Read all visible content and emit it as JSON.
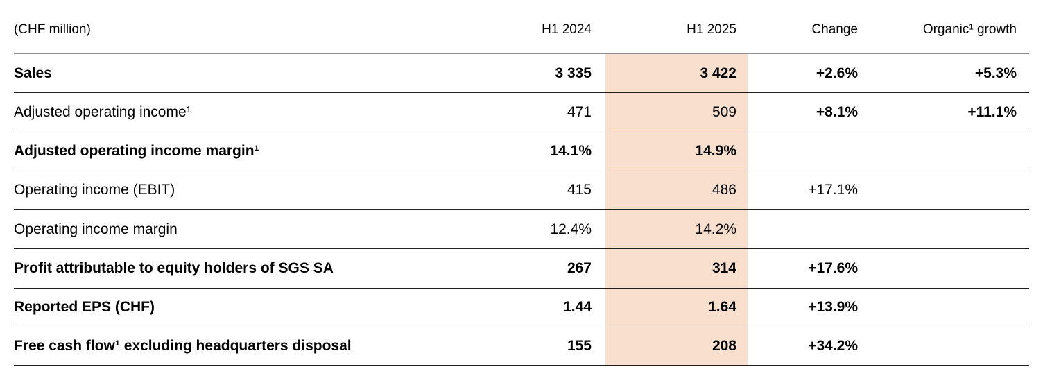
{
  "table": {
    "unit_label": "(CHF million)",
    "columns": {
      "h1_2024": "H1 2024",
      "h1_2025": "H1 2025",
      "change": "Change",
      "organic": "Organic¹ growth"
    },
    "highlight_color": "#f8dfce",
    "rows": [
      {
        "label": "Sales",
        "h1_2024": "3 335",
        "h1_2025": "3 422",
        "change": "+2.6%",
        "organic": "+5.3%"
      },
      {
        "label": "Adjusted operating income¹",
        "h1_2024": "471",
        "h1_2025": "509",
        "change": "+8.1%",
        "organic": "+11.1%"
      },
      {
        "label": "Adjusted operating income margin¹",
        "h1_2024": "14.1%",
        "h1_2025": "14.9%",
        "change": "",
        "organic": ""
      },
      {
        "label": "Operating income (EBIT)",
        "h1_2024": "415",
        "h1_2025": "486",
        "change": "+17.1%",
        "organic": ""
      },
      {
        "label": "Operating income margin",
        "h1_2024": "12.4%",
        "h1_2025": "14.2%",
        "change": "",
        "organic": ""
      },
      {
        "label": "Profit attributable to equity holders of SGS SA",
        "h1_2024": "267",
        "h1_2025": "314",
        "change": "+17.6%",
        "organic": ""
      },
      {
        "label": "Reported EPS (CHF)",
        "h1_2024": "1.44",
        "h1_2025": "1.64",
        "change": "+13.9%",
        "organic": ""
      },
      {
        "label": "Free cash flow¹ excluding headquarters disposal",
        "h1_2024": "155",
        "h1_2025": "208",
        "change": "+34.2%",
        "organic": ""
      }
    ],
    "chart_data": {
      "type": "table",
      "title": "(CHF million)",
      "categories": [
        "Sales",
        "Adjusted operating income",
        "Adjusted operating income margin",
        "Operating income (EBIT)",
        "Operating income margin",
        "Profit attributable to equity holders of SGS SA",
        "Reported EPS (CHF)",
        "Free cash flow excluding headquarters disposal"
      ],
      "series": [
        {
          "name": "H1 2024",
          "values": [
            "3 335",
            "471",
            "14.1%",
            "415",
            "12.4%",
            "267",
            "1.44",
            "155"
          ]
        },
        {
          "name": "H1 2025",
          "values": [
            "3 422",
            "509",
            "14.9%",
            "486",
            "14.2%",
            "314",
            "1.64",
            "208"
          ]
        },
        {
          "name": "Change",
          "values": [
            "+2.6%",
            "+8.1%",
            null,
            "+17.1%",
            null,
            "+17.6%",
            "+13.9%",
            "+34.2%"
          ]
        },
        {
          "name": "Organic growth",
          "values": [
            "+5.3%",
            "+11.1%",
            null,
            null,
            null,
            null,
            null,
            null
          ]
        }
      ]
    }
  }
}
